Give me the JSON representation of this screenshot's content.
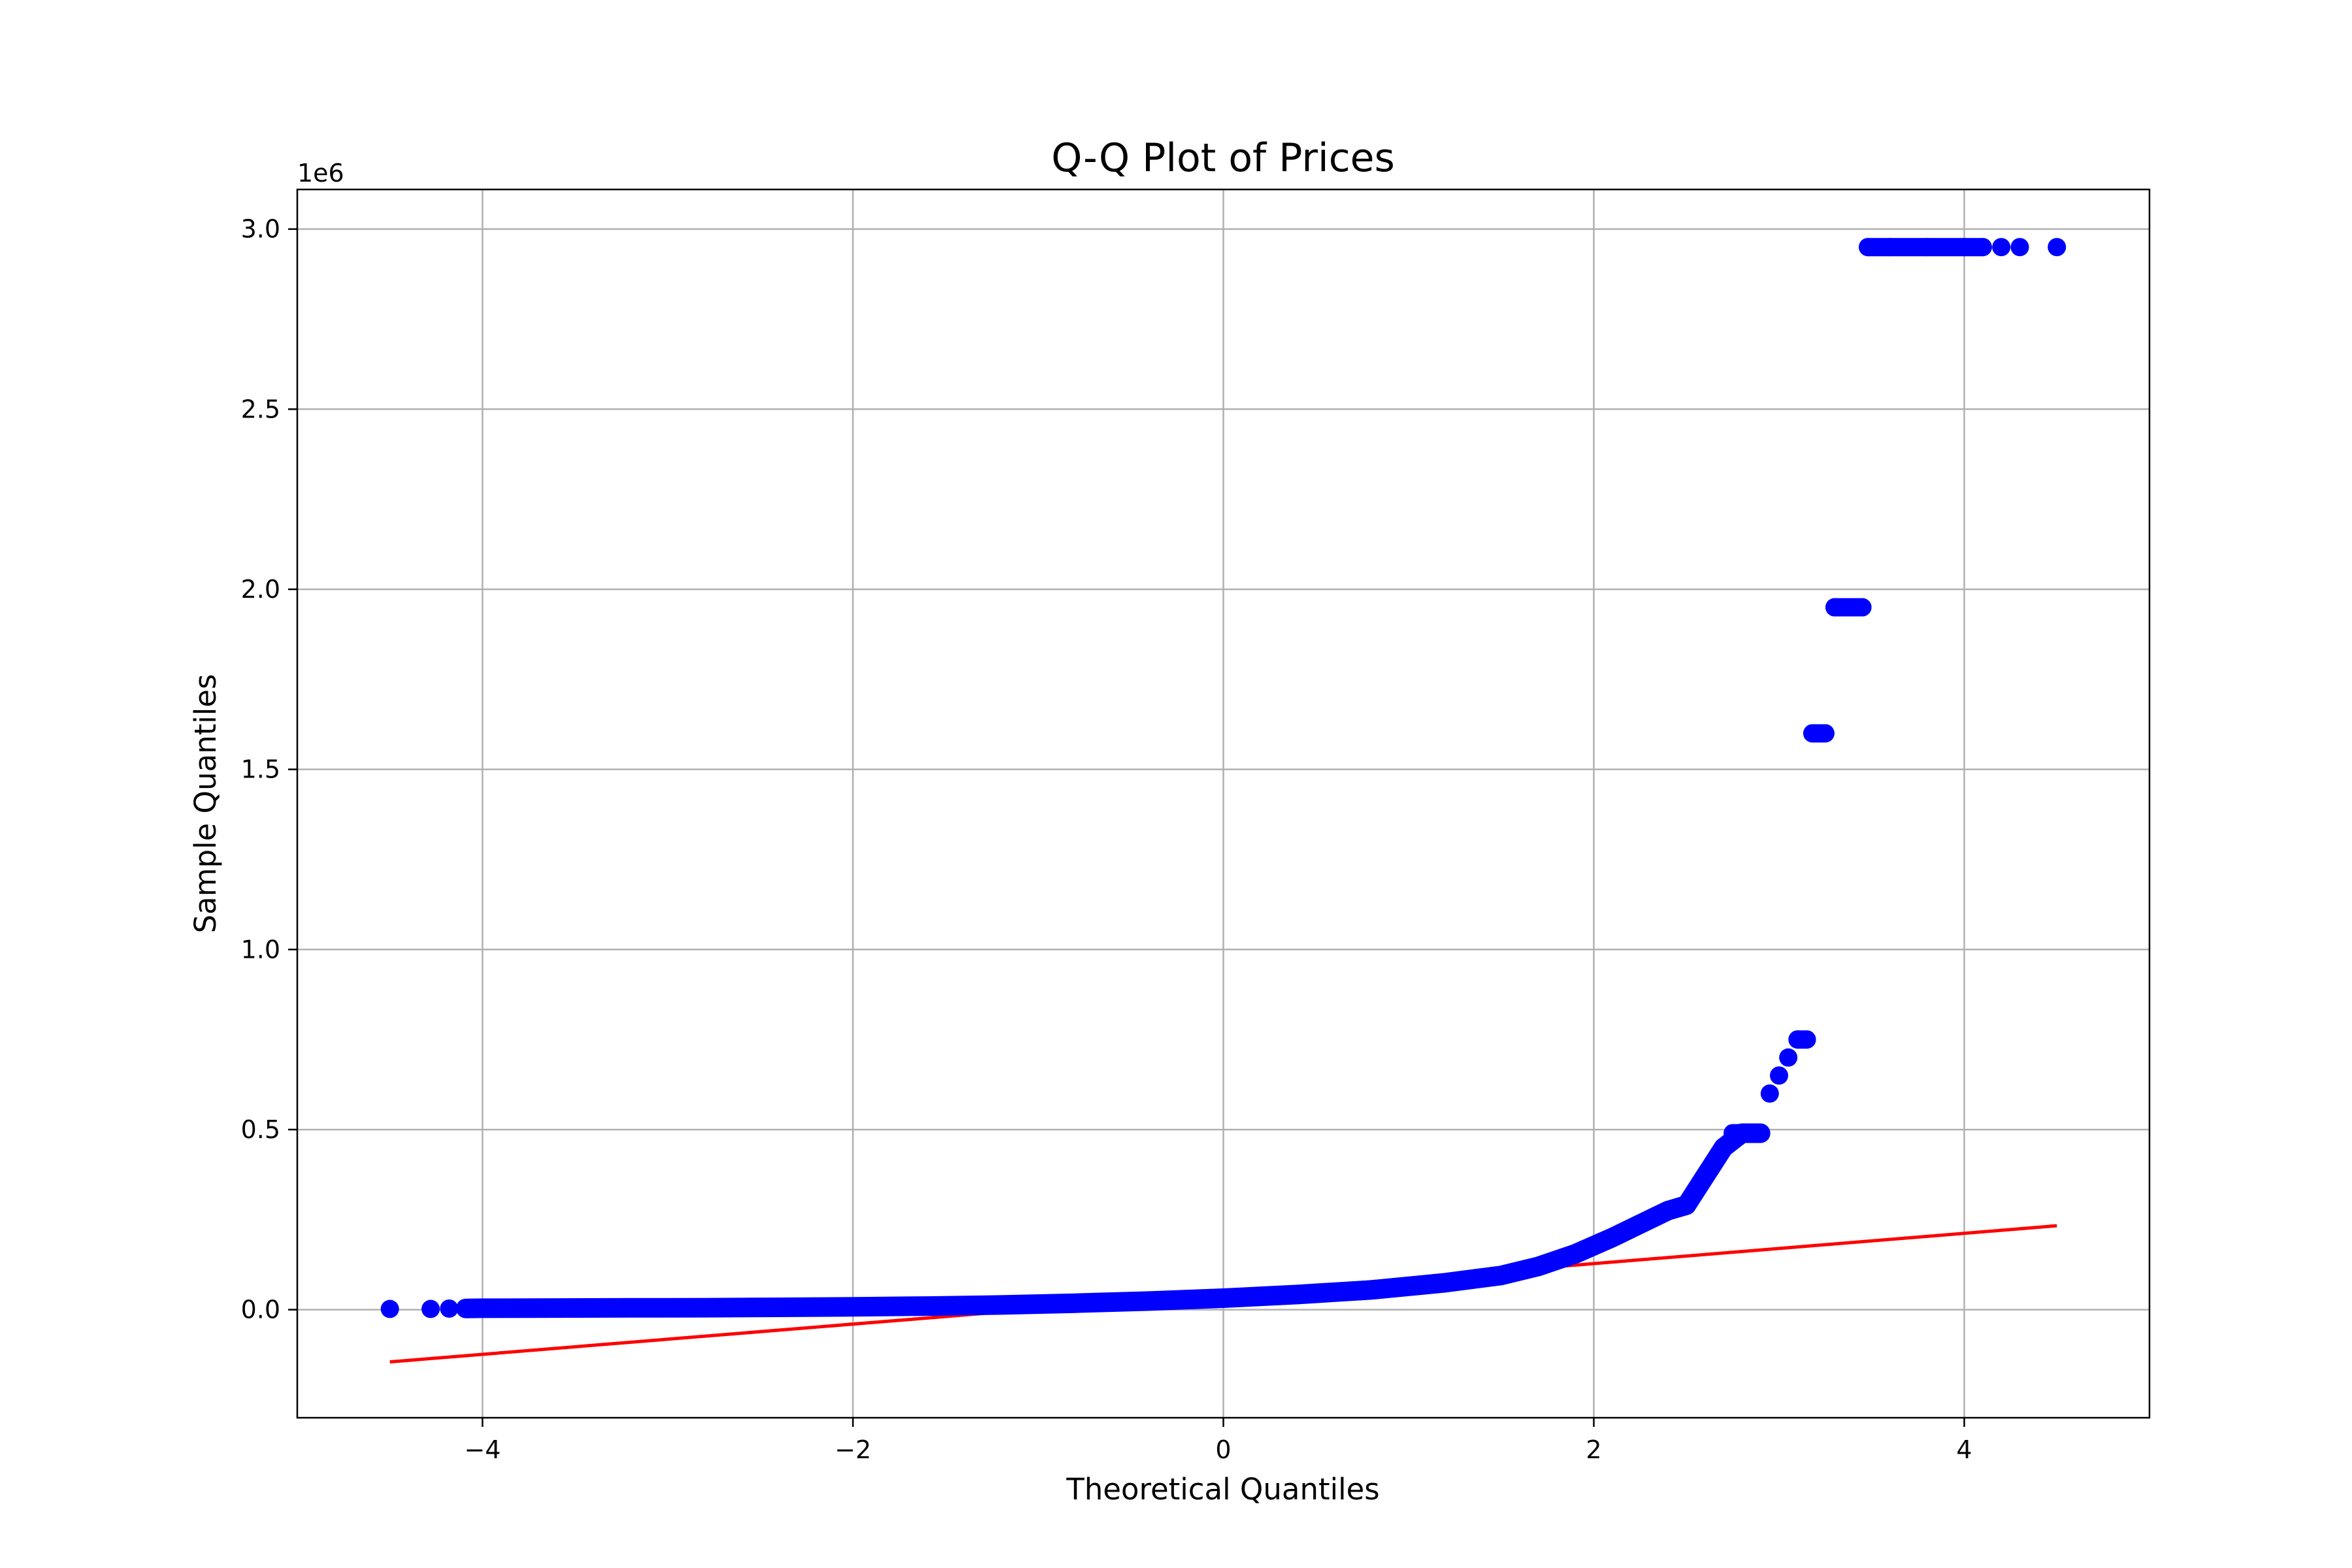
{
  "chart_data": {
    "type": "scatter",
    "title": "Q-Q Plot of Prices",
    "xlabel": "Theoretical Quantiles",
    "ylabel": "Sample Quantiles",
    "y_offset_label": "1e6",
    "xlim": [
      -5.0,
      5.0
    ],
    "ylim": [
      -300000,
      3110000
    ],
    "grid": true,
    "x_ticks": [
      {
        "value": -4,
        "label": "−4"
      },
      {
        "value": -2,
        "label": "−2"
      },
      {
        "value": 0,
        "label": "0"
      },
      {
        "value": 2,
        "label": "2"
      },
      {
        "value": 4,
        "label": "4"
      }
    ],
    "y_ticks": [
      {
        "value": 0,
        "label": "0.0"
      },
      {
        "value": 500000,
        "label": "0.5"
      },
      {
        "value": 1000000,
        "label": "1.0"
      },
      {
        "value": 1500000,
        "label": "1.5"
      },
      {
        "value": 2000000,
        "label": "2.0"
      },
      {
        "value": 2500000,
        "label": "2.5"
      },
      {
        "value": 3000000,
        "label": "3.0"
      }
    ],
    "series": [
      {
        "kind": "points",
        "color": "#0000ff",
        "points": [
          [
            -4.5,
            2000
          ],
          [
            -4.28,
            2000
          ],
          [
            -4.18,
            3000
          ],
          [
            -4.09,
            3500
          ],
          [
            -4.0,
            4000
          ],
          [
            -3.6,
            4500
          ],
          [
            -3.2,
            5000
          ],
          [
            -2.8,
            5500
          ],
          [
            -2.4,
            6500
          ],
          [
            -2.0,
            8000
          ],
          [
            -1.6,
            10000
          ],
          [
            -1.2,
            13000
          ],
          [
            -0.8,
            18000
          ],
          [
            -0.4,
            24000
          ],
          [
            0.0,
            32000
          ],
          [
            0.4,
            42000
          ],
          [
            0.8,
            55000
          ],
          [
            1.2,
            75000
          ],
          [
            1.5,
            95000
          ],
          [
            1.7,
            120000
          ],
          [
            1.9,
            155000
          ],
          [
            2.1,
            200000
          ],
          [
            2.3,
            250000
          ],
          [
            2.4,
            275000
          ],
          [
            2.5,
            290000
          ],
          [
            2.55,
            330000
          ],
          [
            2.6,
            370000
          ],
          [
            2.65,
            410000
          ],
          [
            2.7,
            450000
          ],
          [
            2.8,
            490000
          ],
          [
            2.9,
            490000
          ],
          [
            2.95,
            600000
          ],
          [
            3.0,
            650000
          ],
          [
            3.05,
            700000
          ],
          [
            3.1,
            750000
          ],
          [
            3.15,
            750000
          ],
          [
            3.18,
            1600000
          ],
          [
            3.25,
            1600000
          ],
          [
            3.3,
            1950000
          ],
          [
            3.38,
            1950000
          ],
          [
            3.45,
            1950000
          ],
          [
            3.48,
            2950000
          ],
          [
            3.6,
            2950000
          ],
          [
            3.8,
            2950000
          ],
          [
            4.0,
            2950000
          ],
          [
            4.1,
            2950000
          ],
          [
            4.2,
            2950000
          ],
          [
            4.3,
            2950000
          ],
          [
            4.5,
            2950000
          ]
        ]
      },
      {
        "kind": "line",
        "color": "#ff0000",
        "points": [
          [
            -4.5,
            -145000
          ],
          [
            4.5,
            233000
          ]
        ]
      }
    ]
  }
}
